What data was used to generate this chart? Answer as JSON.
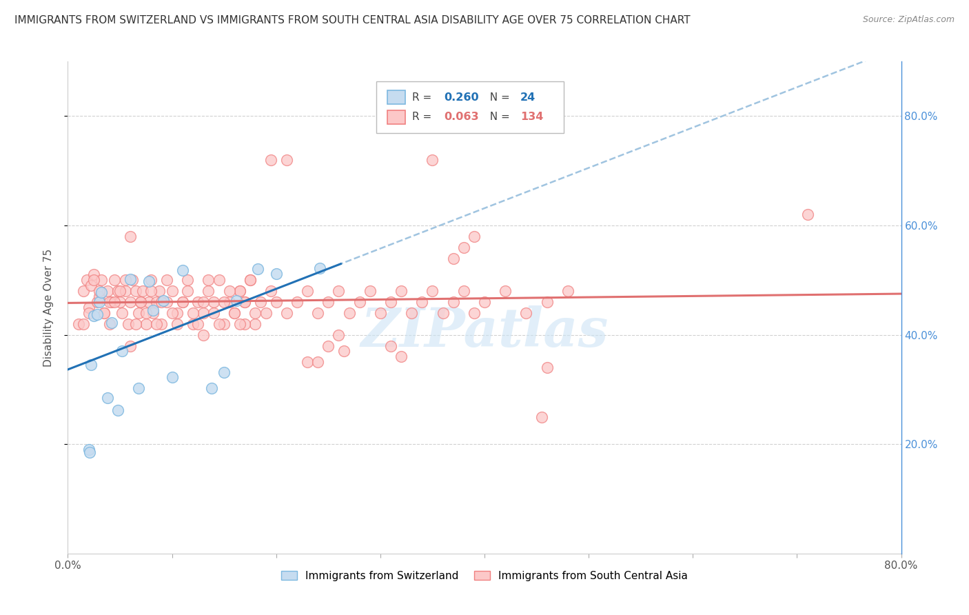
{
  "title": "IMMIGRANTS FROM SWITZERLAND VS IMMIGRANTS FROM SOUTH CENTRAL ASIA DISABILITY AGE OVER 75 CORRELATION CHART",
  "source": "Source: ZipAtlas.com",
  "ylabel": "Disability Age Over 75",
  "xlim": [
    0.0,
    0.8
  ],
  "ylim": [
    0.0,
    0.9
  ],
  "y_ticks_right": [
    0.2,
    0.4,
    0.6,
    0.8
  ],
  "y_tick_labels_right": [
    "20.0%",
    "40.0%",
    "60.0%",
    "80.0%"
  ],
  "color_swiss_fill": "#c6dcf0",
  "color_swiss_edge": "#7db8e0",
  "color_swiss_line": "#2171b5",
  "color_asia_fill": "#fcc8c8",
  "color_asia_edge": "#f08080",
  "color_asia_line": "#e07070",
  "color_dash": "#a0c4e0",
  "right_axis_color": "#4a90d9",
  "watermark_color": "#cde4f5",
  "grid_color": "#d0d0d0",
  "swiss_x": [
    0.02,
    0.021,
    0.022,
    0.025,
    0.028,
    0.03,
    0.032,
    0.038,
    0.042,
    0.048,
    0.052,
    0.06,
    0.068,
    0.078,
    0.082,
    0.092,
    0.1,
    0.11,
    0.138,
    0.15,
    0.162,
    0.182,
    0.2,
    0.242
  ],
  "swiss_y": [
    0.19,
    0.185,
    0.345,
    0.435,
    0.438,
    0.46,
    0.478,
    0.285,
    0.422,
    0.262,
    0.37,
    0.502,
    0.302,
    0.498,
    0.445,
    0.462,
    0.322,
    0.518,
    0.302,
    0.332,
    0.462,
    0.52,
    0.512,
    0.522
  ],
  "asia_x": [
    0.01,
    0.015,
    0.018,
    0.02,
    0.022,
    0.025,
    0.028,
    0.03,
    0.032,
    0.035,
    0.038,
    0.04,
    0.042,
    0.045,
    0.048,
    0.05,
    0.052,
    0.055,
    0.058,
    0.06,
    0.062,
    0.065,
    0.068,
    0.07,
    0.072,
    0.075,
    0.078,
    0.08,
    0.082,
    0.085,
    0.088,
    0.09,
    0.095,
    0.1,
    0.105,
    0.11,
    0.115,
    0.12,
    0.125,
    0.13,
    0.135,
    0.14,
    0.145,
    0.15,
    0.155,
    0.16,
    0.165,
    0.17,
    0.175,
    0.18,
    0.185,
    0.19,
    0.195,
    0.2,
    0.21,
    0.22,
    0.23,
    0.24,
    0.25,
    0.26,
    0.27,
    0.28,
    0.29,
    0.3,
    0.31,
    0.32,
    0.33,
    0.34,
    0.35,
    0.36,
    0.37,
    0.38,
    0.39,
    0.4,
    0.42,
    0.44,
    0.46,
    0.48,
    0.195,
    0.21,
    0.35,
    0.455,
    0.46,
    0.71,
    0.37,
    0.38,
    0.39,
    0.31,
    0.32,
    0.13,
    0.25,
    0.26,
    0.265,
    0.23,
    0.24,
    0.165,
    0.17,
    0.06,
    0.02,
    0.025,
    0.03,
    0.035,
    0.04,
    0.015,
    0.045,
    0.05,
    0.055,
    0.06,
    0.065,
    0.07,
    0.075,
    0.08,
    0.085,
    0.09,
    0.095,
    0.1,
    0.105,
    0.11,
    0.115,
    0.12,
    0.125,
    0.13,
    0.135,
    0.14,
    0.145,
    0.15,
    0.155,
    0.16,
    0.165,
    0.17,
    0.175,
    0.18
  ],
  "asia_y": [
    0.42,
    0.48,
    0.5,
    0.45,
    0.49,
    0.51,
    0.46,
    0.47,
    0.5,
    0.44,
    0.48,
    0.42,
    0.46,
    0.5,
    0.48,
    0.46,
    0.44,
    0.48,
    0.42,
    0.46,
    0.5,
    0.48,
    0.44,
    0.46,
    0.48,
    0.42,
    0.46,
    0.5,
    0.44,
    0.46,
    0.48,
    0.42,
    0.46,
    0.48,
    0.44,
    0.46,
    0.5,
    0.42,
    0.46,
    0.44,
    0.48,
    0.46,
    0.5,
    0.42,
    0.46,
    0.44,
    0.48,
    0.46,
    0.5,
    0.42,
    0.46,
    0.44,
    0.48,
    0.46,
    0.44,
    0.46,
    0.48,
    0.44,
    0.46,
    0.48,
    0.44,
    0.46,
    0.48,
    0.44,
    0.46,
    0.48,
    0.44,
    0.46,
    0.48,
    0.44,
    0.46,
    0.48,
    0.44,
    0.46,
    0.48,
    0.44,
    0.46,
    0.48,
    0.72,
    0.72,
    0.72,
    0.25,
    0.34,
    0.62,
    0.54,
    0.56,
    0.58,
    0.38,
    0.36,
    0.4,
    0.38,
    0.4,
    0.37,
    0.35,
    0.35,
    0.48,
    0.42,
    0.58,
    0.44,
    0.5,
    0.48,
    0.44,
    0.46,
    0.42,
    0.46,
    0.48,
    0.5,
    0.38,
    0.42,
    0.46,
    0.44,
    0.48,
    0.42,
    0.46,
    0.5,
    0.44,
    0.42,
    0.46,
    0.48,
    0.44,
    0.42,
    0.46,
    0.5,
    0.44,
    0.42,
    0.46,
    0.48,
    0.44,
    0.42,
    0.46,
    0.5,
    0.44
  ]
}
